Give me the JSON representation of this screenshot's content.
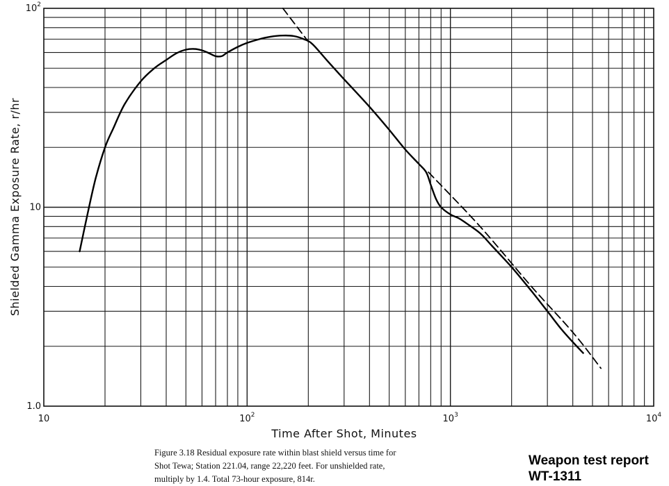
{
  "chart_data": {
    "type": "line",
    "title": "",
    "xlabel": "Time After Shot, Minutes",
    "ylabel": "Shielded Gamma Exposure Rate, r/hr",
    "xscale": "log",
    "yscale": "log",
    "xlim": [
      10,
      10000
    ],
    "ylim": [
      1.0,
      100
    ],
    "grid": true,
    "x_ticks": [
      {
        "value": 10,
        "base": "10",
        "exp": ""
      },
      {
        "value": 100,
        "base": "10",
        "exp": "2"
      },
      {
        "value": 1000,
        "base": "10",
        "exp": "3"
      },
      {
        "value": 10000,
        "base": "10",
        "exp": "4"
      }
    ],
    "y_ticks": [
      {
        "value": 1,
        "base": "1.0",
        "exp": ""
      },
      {
        "value": 10,
        "base": "10",
        "exp": ""
      },
      {
        "value": 100,
        "base": "10",
        "exp": "2"
      }
    ],
    "series": [
      {
        "style": "solid",
        "x": [
          15,
          16.5,
          18,
          20,
          22,
          25,
          30,
          35,
          40,
          45,
          50,
          55,
          60,
          65,
          70,
          75,
          80,
          90,
          100,
          115,
          130,
          150,
          170,
          190,
          210,
          250,
          300,
          400,
          500,
          600,
          700,
          760,
          800,
          850,
          900,
          1000,
          1100,
          1200,
          1400,
          1600,
          2000,
          2500,
          3000,
          3500,
          4000,
          4500
        ],
        "y": [
          6,
          9.5,
          14,
          20,
          25,
          33,
          43,
          50,
          55,
          59.5,
          62,
          62.5,
          61.5,
          59.5,
          57.5,
          57.5,
          60,
          64,
          67,
          70,
          72,
          73,
          72.5,
          70,
          66,
          54,
          44,
          32,
          24.5,
          19.5,
          16.5,
          15,
          13,
          11,
          10,
          9.2,
          8.8,
          8.3,
          7.4,
          6.4,
          5,
          3.8,
          3,
          2.45,
          2.1,
          1.85
        ]
      },
      {
        "style": "dashed",
        "x": [
          150,
          200
        ],
        "y": [
          100,
          68
        ]
      },
      {
        "style": "dashed",
        "x": [
          780,
          1400,
          2500,
          4000,
          5500
        ],
        "y": [
          15,
          8,
          4,
          2.35,
          1.55
        ]
      }
    ]
  },
  "caption": {
    "line1": "Figure 3.18  Residual exposure rate within blast shield versus time for",
    "line2": "Shot Tewa; Station 221.04,  range 22,220 feet.  For unshielded rate,",
    "line3": "multiply by 1.4.   Total 73-hour exposure,  814r."
  },
  "stamp": {
    "line1": "Weapon test report",
    "line2": "WT-1311"
  }
}
